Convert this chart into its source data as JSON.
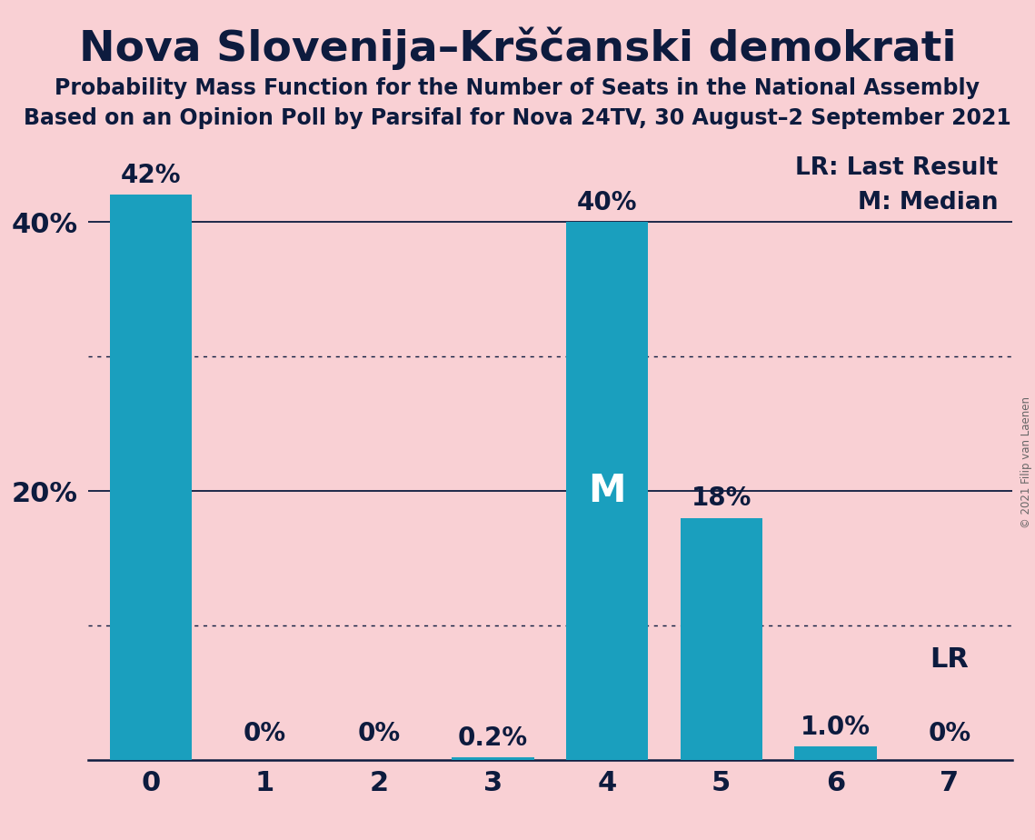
{
  "title": "Nova Slovenija–Krščanski demokrati",
  "subtitle1": "Probability Mass Function for the Number of Seats in the National Assembly",
  "subtitle2": "Based on an Opinion Poll by Parsifal for Nova 24TV, 30 August–2 September 2021",
  "copyright": "© 2021 Filip van Laenen",
  "categories": [
    0,
    1,
    2,
    3,
    4,
    5,
    6,
    7
  ],
  "values": [
    42.0,
    0.0,
    0.0,
    0.2,
    40.0,
    18.0,
    1.0,
    0.0
  ],
  "bar_labels": [
    "42%",
    "0%",
    "0%",
    "0.2%",
    "40%",
    "18%",
    "1.0%",
    "0%"
  ],
  "bar_color": "#1a9fbe",
  "background_color": "#f9d0d4",
  "median_bar": 4,
  "median_label": "M",
  "lr_bar": 7,
  "lr_label": "LR",
  "legend_lr": "LR: Last Result",
  "legend_m": "M: Median",
  "ylim": [
    0,
    46
  ],
  "yticks": [
    0,
    20,
    40
  ],
  "ytick_labels": [
    "",
    "20%",
    "40%"
  ],
  "grid_solid": [
    20,
    40
  ],
  "grid_dotted": [
    10,
    30
  ],
  "title_fontsize": 34,
  "subtitle_fontsize": 17,
  "tick_fontsize": 22,
  "legend_fontsize": 19,
  "bar_label_fontsize": 20,
  "median_fontsize": 30,
  "lr_fontsize": 22,
  "text_color": "#0d1b3e",
  "grid_color": "#0d1b3e",
  "copyright_color": "#666666"
}
